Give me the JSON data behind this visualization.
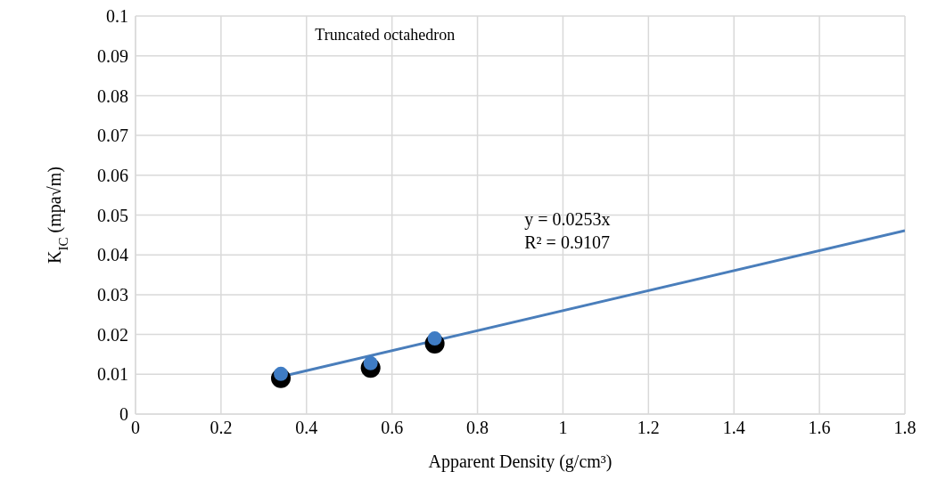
{
  "chart_data": {
    "type": "scatter",
    "xlabel": "Apparent Density (g/cm³)",
    "ylabel": "K$_{IC}$ (mpa√m)",
    "xlim": [
      0,
      1.8
    ],
    "xticks": [
      0,
      0.2,
      0.4,
      0.6,
      0.8,
      1,
      1.2,
      1.4,
      1.6,
      1.8
    ],
    "ylim": [
      0,
      0.1
    ],
    "yticks": [
      0,
      0.01,
      0.02,
      0.03,
      0.04,
      0.05,
      0.06,
      0.07,
      0.08,
      0.09,
      0.1
    ],
    "grid": true,
    "legend": false,
    "marker": "circle",
    "annotations": [
      "Truncated octahedron",
      "y = 0.0253x",
      "R² = 0.9107"
    ],
    "series": [
      {
        "color": "#000000",
        "x": [
          0.34,
          0.55,
          0.7
        ],
        "values": [
          0.009,
          0.0116,
          0.0177
        ]
      },
      {
        "color": "#3f7cc4",
        "x": [
          0.34,
          0.55,
          0.7
        ],
        "values": [
          0.0101,
          0.0128,
          0.019
        ]
      },
      {
        "type": "line",
        "color": "#4a7ebb",
        "marker": "none",
        "x": [
          0.34,
          1.8
        ],
        "values": [
          0.0094,
          0.0461
        ]
      }
    ]
  }
}
